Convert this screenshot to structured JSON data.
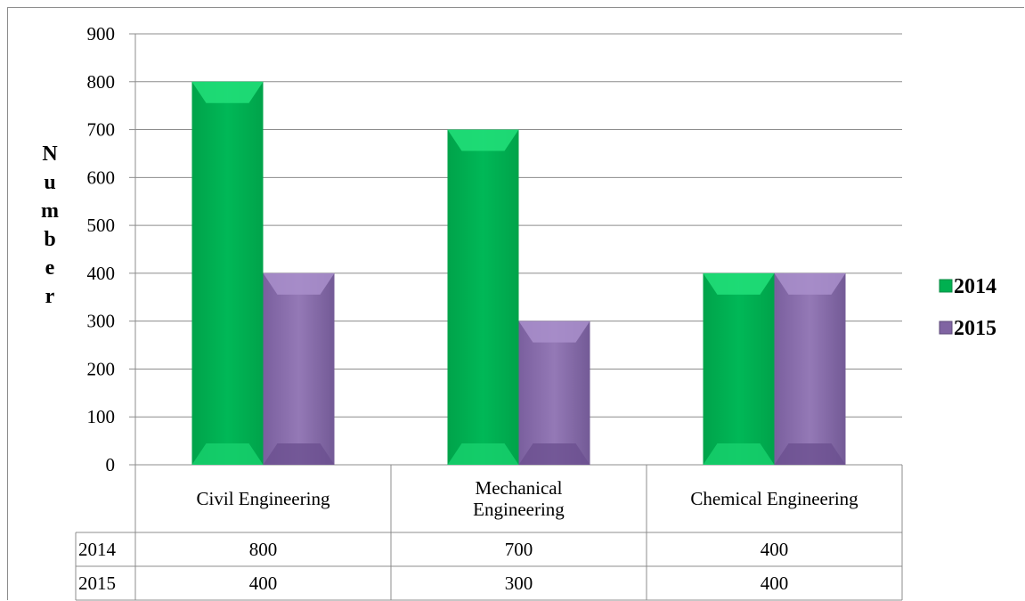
{
  "chart_data": {
    "type": "bar",
    "title": "",
    "xlabel": "",
    "ylabel": "Number",
    "ylim": [
      0,
      900
    ],
    "ytick_step": 100,
    "grid": true,
    "legend_position": "right",
    "categories": [
      "Civil Engineering",
      "Mechanical Engineering",
      "Chemical Engineering"
    ],
    "series": [
      {
        "name": "2014",
        "color": "#00B050",
        "values": [
          800,
          700,
          400
        ]
      },
      {
        "name": "2015",
        "color": "#8064A2",
        "values": [
          400,
          300,
          400
        ]
      }
    ],
    "data_table": true
  }
}
